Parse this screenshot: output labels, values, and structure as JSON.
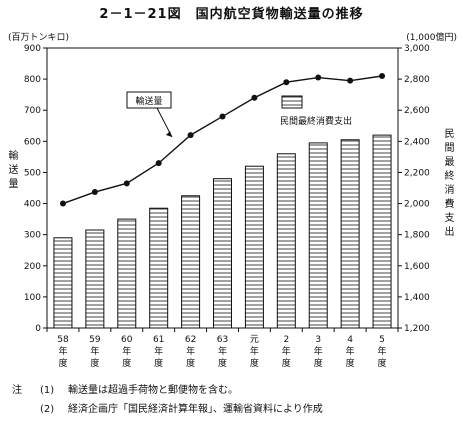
{
  "title": "2－1－21図　国内航空貨物輸送量の推移",
  "chart_data": {
    "type": "bar+line",
    "categories": [
      [
        "58",
        "年",
        "度"
      ],
      [
        "59",
        "年",
        "度"
      ],
      [
        "60",
        "年",
        "度"
      ],
      [
        "61",
        "年",
        "度"
      ],
      [
        "62",
        "年",
        "度"
      ],
      [
        "63",
        "年",
        "度"
      ],
      [
        "元",
        "年",
        "度"
      ],
      [
        "2",
        "年",
        "度"
      ],
      [
        "3",
        "年",
        "度"
      ],
      [
        "4",
        "年",
        "度"
      ],
      [
        "5",
        "年",
        "度"
      ]
    ],
    "left_axis": {
      "unit": "(百万トンキロ)",
      "label": "輸送量",
      "range": [
        0,
        900
      ],
      "ticks": [
        0,
        100,
        200,
        300,
        400,
        500,
        600,
        700,
        800,
        900
      ]
    },
    "right_axis": {
      "unit": "(1,000億円)",
      "label": "民間最終消費支出",
      "range": [
        1200,
        3000
      ],
      "ticks": [
        "1,200",
        "1,400",
        "1,600",
        "1,800",
        "2,000",
        "2,200",
        "2,400",
        "2,600",
        "2,800",
        "3,000"
      ]
    },
    "series": [
      {
        "name": "輸送量",
        "type": "line",
        "axis": "left",
        "values": [
          400,
          437,
          465,
          530,
          620,
          680,
          740,
          790,
          805,
          795,
          810
        ]
      },
      {
        "name": "民間最終消費支出",
        "type": "bar",
        "axis": "right",
        "values": [
          1780,
          1830,
          1900,
          1970,
          2050,
          2160,
          2240,
          2320,
          2390,
          2410,
          2440
        ]
      }
    ]
  },
  "notes": [
    {
      "mark": "注",
      "num": "(1)",
      "text": "輸送量は超過手荷物と郵便物を含む。"
    },
    {
      "mark": "",
      "num": "(2)",
      "text": "経済企画庁「国民経済計算年報」、運輸省資料により作成"
    }
  ],
  "colors": {
    "ink": "#111111",
    "bar_hatch": "#444444"
  }
}
